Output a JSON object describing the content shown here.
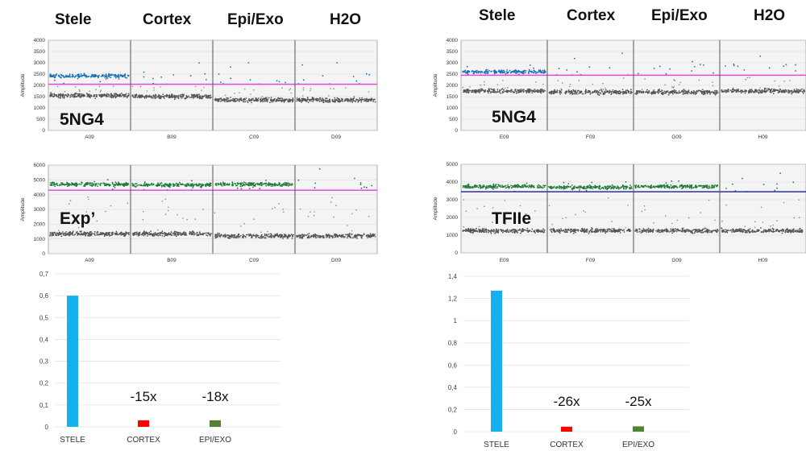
{
  "columns": [
    "Stele",
    "Cortex",
    "Epi/Exo",
    "H2O"
  ],
  "ddpcr_plots": [
    {
      "id": "left-top",
      "label": "5NG4",
      "ylabel": "Amplitude",
      "ylim": [
        0,
        4000
      ],
      "ystep": 500,
      "wells": [
        "A09",
        "B09",
        "C09",
        "D09"
      ],
      "threshold": 2050,
      "threshold_color": "#e040e0",
      "positive_color": "#1f6fb2",
      "neg_level": [
        1550,
        1500,
        1350,
        1350
      ],
      "pos_level": [
        2420,
        null,
        null,
        null
      ]
    },
    {
      "id": "left-bottom",
      "label": "Exp’",
      "ylabel": "Amplitude",
      "ylim": [
        0,
        6000
      ],
      "ystep": 1000,
      "wells": [
        "A09",
        "B09",
        "C09",
        "D09"
      ],
      "threshold": 4300,
      "threshold_color": "#e040e0",
      "positive_color": "#1f7a3a",
      "neg_level": [
        1350,
        1350,
        1200,
        1200
      ],
      "pos_level": [
        4700,
        4650,
        4700,
        null
      ]
    },
    {
      "id": "right-top",
      "label": "5NG4",
      "ylabel": "Amplitude",
      "ylim": [
        0,
        4000
      ],
      "ystep": 500,
      "wells": [
        "E09",
        "F09",
        "G09",
        "H09"
      ],
      "threshold": 2450,
      "threshold_color": "#e040e0",
      "positive_color": "#1f6fb2",
      "neg_level": [
        1750,
        1700,
        1700,
        1750
      ],
      "pos_level": [
        2600,
        null,
        null,
        null
      ]
    },
    {
      "id": "right-bottom",
      "label": "TFIIe",
      "ylabel": "Amplitude",
      "ylim": [
        0,
        5000
      ],
      "ystep": 1000,
      "wells": [
        "E09",
        "F09",
        "G09",
        "H09"
      ],
      "threshold": 3450,
      "threshold_color": "#1a1aa0",
      "positive_color": "#1f7a3a",
      "neg_level": [
        1250,
        1250,
        1250,
        1250
      ],
      "pos_level": [
        3750,
        3700,
        3750,
        null
      ]
    }
  ],
  "chart_data": [
    {
      "type": "bar",
      "id": "left-bar",
      "categories": [
        "STELE",
        "CORTEX",
        "EPI/EXO"
      ],
      "values": [
        0.6,
        0.03,
        0.03
      ],
      "colors": [
        "#14b0ef",
        "#ff0000",
        "#548235"
      ],
      "ylim": [
        0,
        0.7
      ],
      "yticks": [
        "0",
        "0,1",
        "0,2",
        "0,3",
        "0,4",
        "0,5",
        "0,6",
        "0,7"
      ],
      "annotations": [
        "-15x",
        "-18x"
      ],
      "grid": true
    },
    {
      "type": "bar",
      "id": "right-bar",
      "categories": [
        "STELE",
        "CORTEX",
        "EPI/EXO"
      ],
      "values": [
        1.27,
        0.045,
        0.048
      ],
      "colors": [
        "#14b0ef",
        "#ff0000",
        "#548235"
      ],
      "ylim": [
        0,
        1.4
      ],
      "yticks": [
        "0",
        "0,2",
        "0,4",
        "0,6",
        "0,8",
        "1",
        "1,2",
        "1,4"
      ],
      "annotations": [
        "-26x",
        "-25x"
      ],
      "grid": true
    }
  ]
}
